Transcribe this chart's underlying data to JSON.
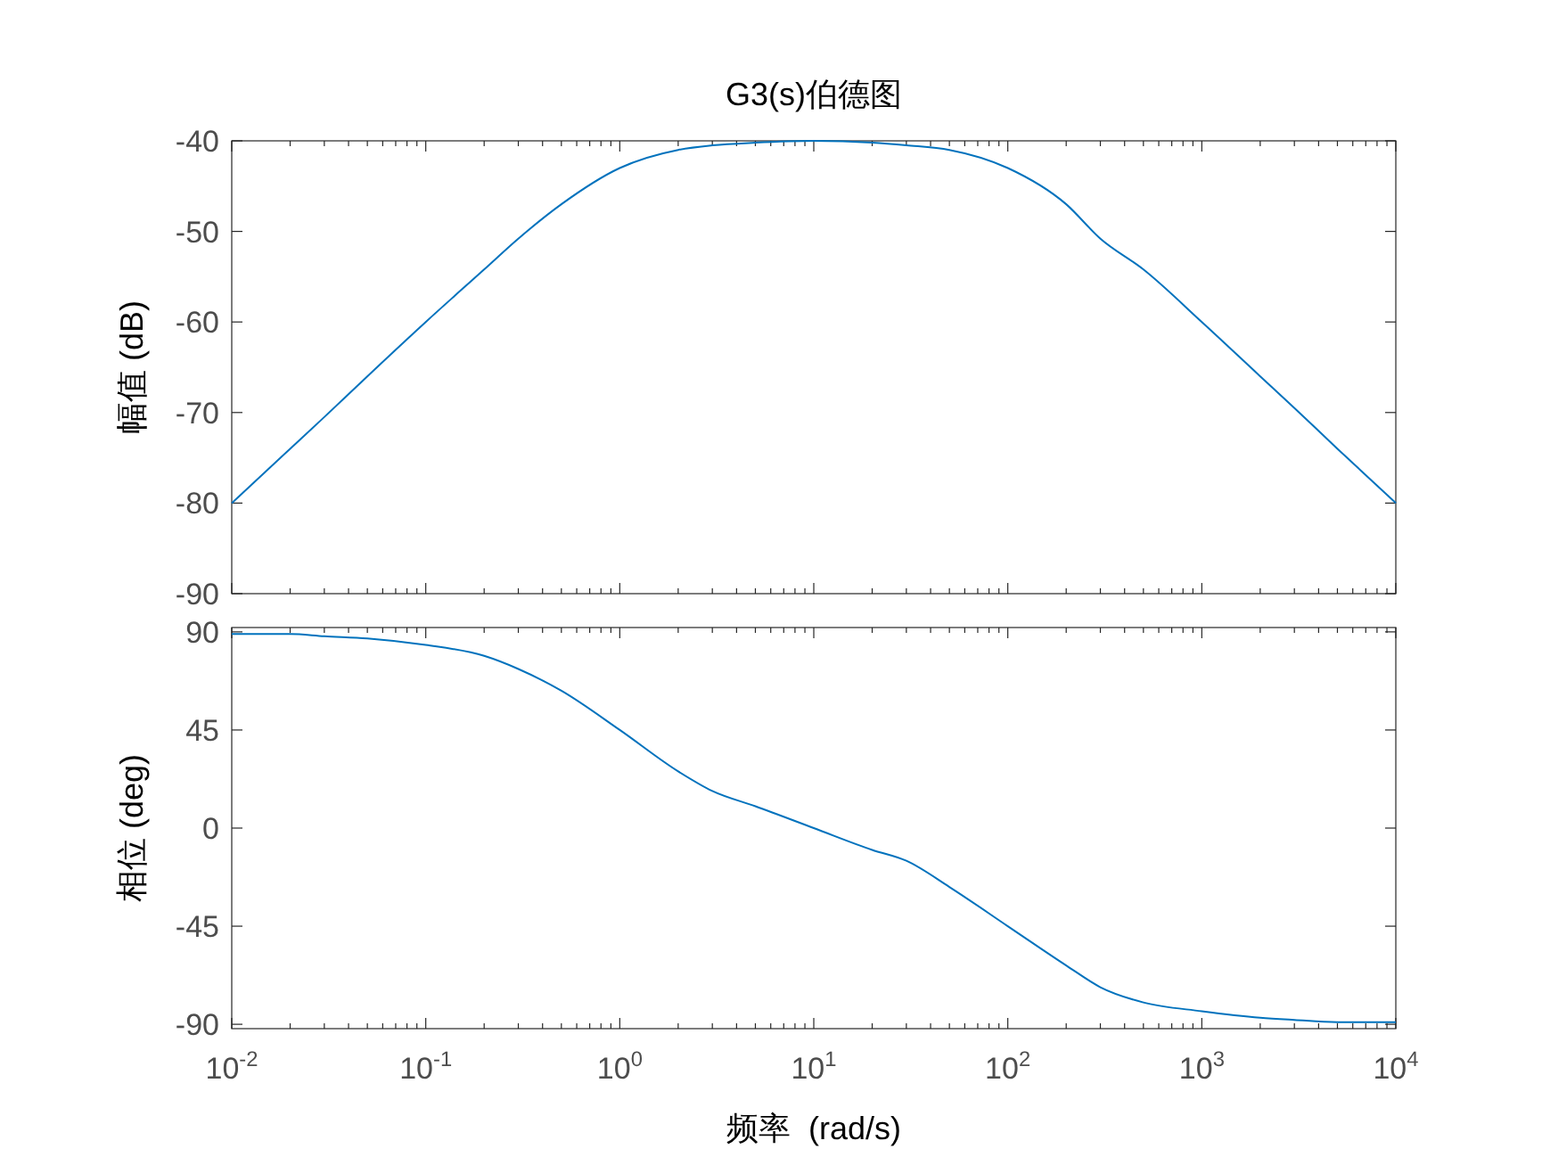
{
  "chart_data": [
    {
      "type": "line",
      "title": "G3(s)伯德图",
      "ylabel": "幅值 (dB)",
      "log": "x",
      "tick_labels": "y",
      "grid": false,
      "x": [
        0.01,
        0.02,
        0.03,
        0.05,
        0.1,
        0.2,
        0.3,
        0.5,
        1,
        2,
        3,
        5,
        10,
        20,
        30,
        50,
        100,
        200,
        300,
        500,
        1000,
        2000,
        3000,
        5000,
        10000
      ],
      "series": [
        {
          "color": "#0072bd",
          "values": [
            -80,
            -74,
            -70.5,
            -66,
            -60,
            -54.2,
            -50.8,
            -47,
            -43,
            -41,
            -40.5,
            -40.2,
            -40,
            -40.2,
            -40.5,
            -41,
            -43,
            -47,
            -50.8,
            -54.2,
            -60,
            -66,
            -69.5,
            -74,
            -80
          ]
        }
      ],
      "xlim": [
        0.01,
        10000
      ],
      "ylim": [
        -90,
        -40
      ],
      "yticks": [
        -90,
        -80,
        -70,
        -60,
        -50,
        -40
      ],
      "xticks": [
        0.01,
        0.1,
        1,
        10,
        100,
        1000,
        10000
      ]
    },
    {
      "type": "line",
      "xlabel": "频率  (rad/s)",
      "ylabel": "相位 (deg)",
      "log": "x",
      "grid": false,
      "x": [
        0.01,
        0.02,
        0.03,
        0.05,
        0.1,
        0.2,
        0.3,
        0.5,
        1,
        2,
        3,
        5,
        10,
        20,
        30,
        50,
        100,
        200,
        300,
        500,
        1000,
        2000,
        3000,
        5000,
        10000
      ],
      "series": [
        {
          "color": "#0072bd",
          "values": [
            89,
            89,
            88,
            87,
            84,
            79,
            73,
            63,
            45,
            26,
            17,
            10,
            0,
            -10,
            -15,
            -27,
            -45,
            -63,
            -73,
            -80,
            -84,
            -87,
            -88,
            -89,
            -89
          ]
        }
      ],
      "xlim": [
        0.01,
        10000
      ],
      "ylim": [
        -92,
        92
      ],
      "yticks": [
        -90,
        -45,
        0,
        45,
        90
      ],
      "xticks": [
        {
          "value": 0.01,
          "label": "10$^{-2}$"
        },
        {
          "value": 0.1,
          "label": "10$^{-1}$"
        },
        {
          "value": 1,
          "label": "10$^{0}$"
        },
        {
          "value": 10,
          "label": "10$^{1}$"
        },
        {
          "value": 100,
          "label": "10$^{2}$"
        },
        {
          "value": 1000,
          "label": "10$^{3}$"
        },
        {
          "value": 10000,
          "label": "10$^{4}$"
        }
      ]
    }
  ]
}
